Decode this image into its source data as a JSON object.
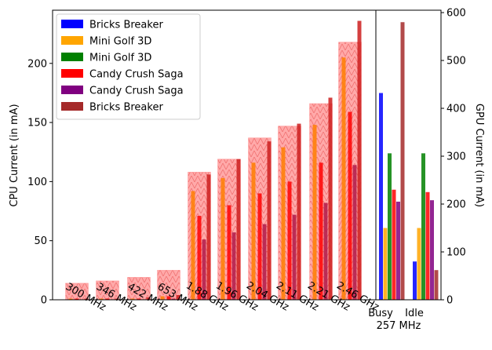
{
  "chart_data": {
    "type": "bar",
    "left_panel": {
      "ylabel": "CPU Current (in mA)",
      "ylim": [
        0,
        245
      ],
      "yticks": [
        0,
        50,
        100,
        150,
        200
      ],
      "categories": [
        "300 MHz",
        "346 MHz",
        "422 MHz",
        "653 MHz",
        "1.88 GHz",
        "1.96 GHz",
        "2.04 GHz",
        "2.11 GHz",
        "2.21 GHz",
        "2.46 GHz"
      ],
      "background_series": [
        14,
        16,
        19,
        25,
        108,
        119,
        137,
        147,
        166,
        218
      ],
      "series": [
        {
          "values": [
            1,
            1,
            1,
            3,
            92,
            103,
            116,
            129,
            148,
            205
          ]
        },
        {
          "values": [
            1,
            1,
            1,
            3,
            71,
            80,
            90,
            100,
            116,
            159
          ]
        },
        {
          "values": [
            0,
            0,
            0,
            1,
            51,
            57,
            64,
            72,
            82,
            114
          ]
        },
        {
          "values": [
            1,
            1,
            2,
            4,
            106,
            119,
            134,
            149,
            171,
            236
          ]
        }
      ]
    },
    "right_panel": {
      "ylabel": "GPU Current (in mA)",
      "ylim": [
        0,
        605
      ],
      "yticks": [
        0,
        100,
        200,
        300,
        400,
        500,
        600
      ],
      "group_labels": [
        "Busy",
        "Idle"
      ],
      "shared_xlabel": "257 MHz",
      "groups": [
        {
          "label": "Busy",
          "bars": [
            {
              "series": "Bricks Breaker",
              "value": 432
            },
            {
              "series": "Mini Golf 3D",
              "value": 150
            },
            {
              "series": "Mini Golf 3D",
              "value": 306
            },
            {
              "series": "Candy Crush Saga",
              "value": 230
            },
            {
              "series": "Candy Crush Saga",
              "value": 205
            },
            {
              "series": "Bricks Breaker",
              "value": 580
            }
          ]
        },
        {
          "label": "Idle",
          "bars": [
            {
              "series": "Bricks Breaker",
              "value": 80
            },
            {
              "series": "Mini Golf 3D",
              "value": 150
            },
            {
              "series": "Mini Golf 3D",
              "value": 306
            },
            {
              "series": "Candy Crush Saga",
              "value": 225
            },
            {
              "series": "Candy Crush Saga",
              "value": 208
            },
            {
              "series": "Bricks Breaker",
              "value": 62
            }
          ]
        }
      ]
    },
    "legend": {
      "placement": "top-left",
      "entries": [
        {
          "name": "Bricks Breaker",
          "color": "#0000ff"
        },
        {
          "name": "Mini Golf 3D",
          "color": "#ffa500"
        },
        {
          "name": "Mini Golf 3D",
          "color": "#008000"
        },
        {
          "name": "Candy Crush Saga",
          "color": "#ff0000"
        },
        {
          "name": "Candy Crush Saga",
          "color": "#800080"
        },
        {
          "name": "Bricks Breaker",
          "color": "#a52a2a"
        }
      ]
    },
    "colors": {
      "background_bar_fill": "#ff9a9a",
      "left_series_colors": [
        "#ff7f00",
        "#ff0000",
        "#b01848",
        "#cc1f1f"
      ]
    }
  }
}
